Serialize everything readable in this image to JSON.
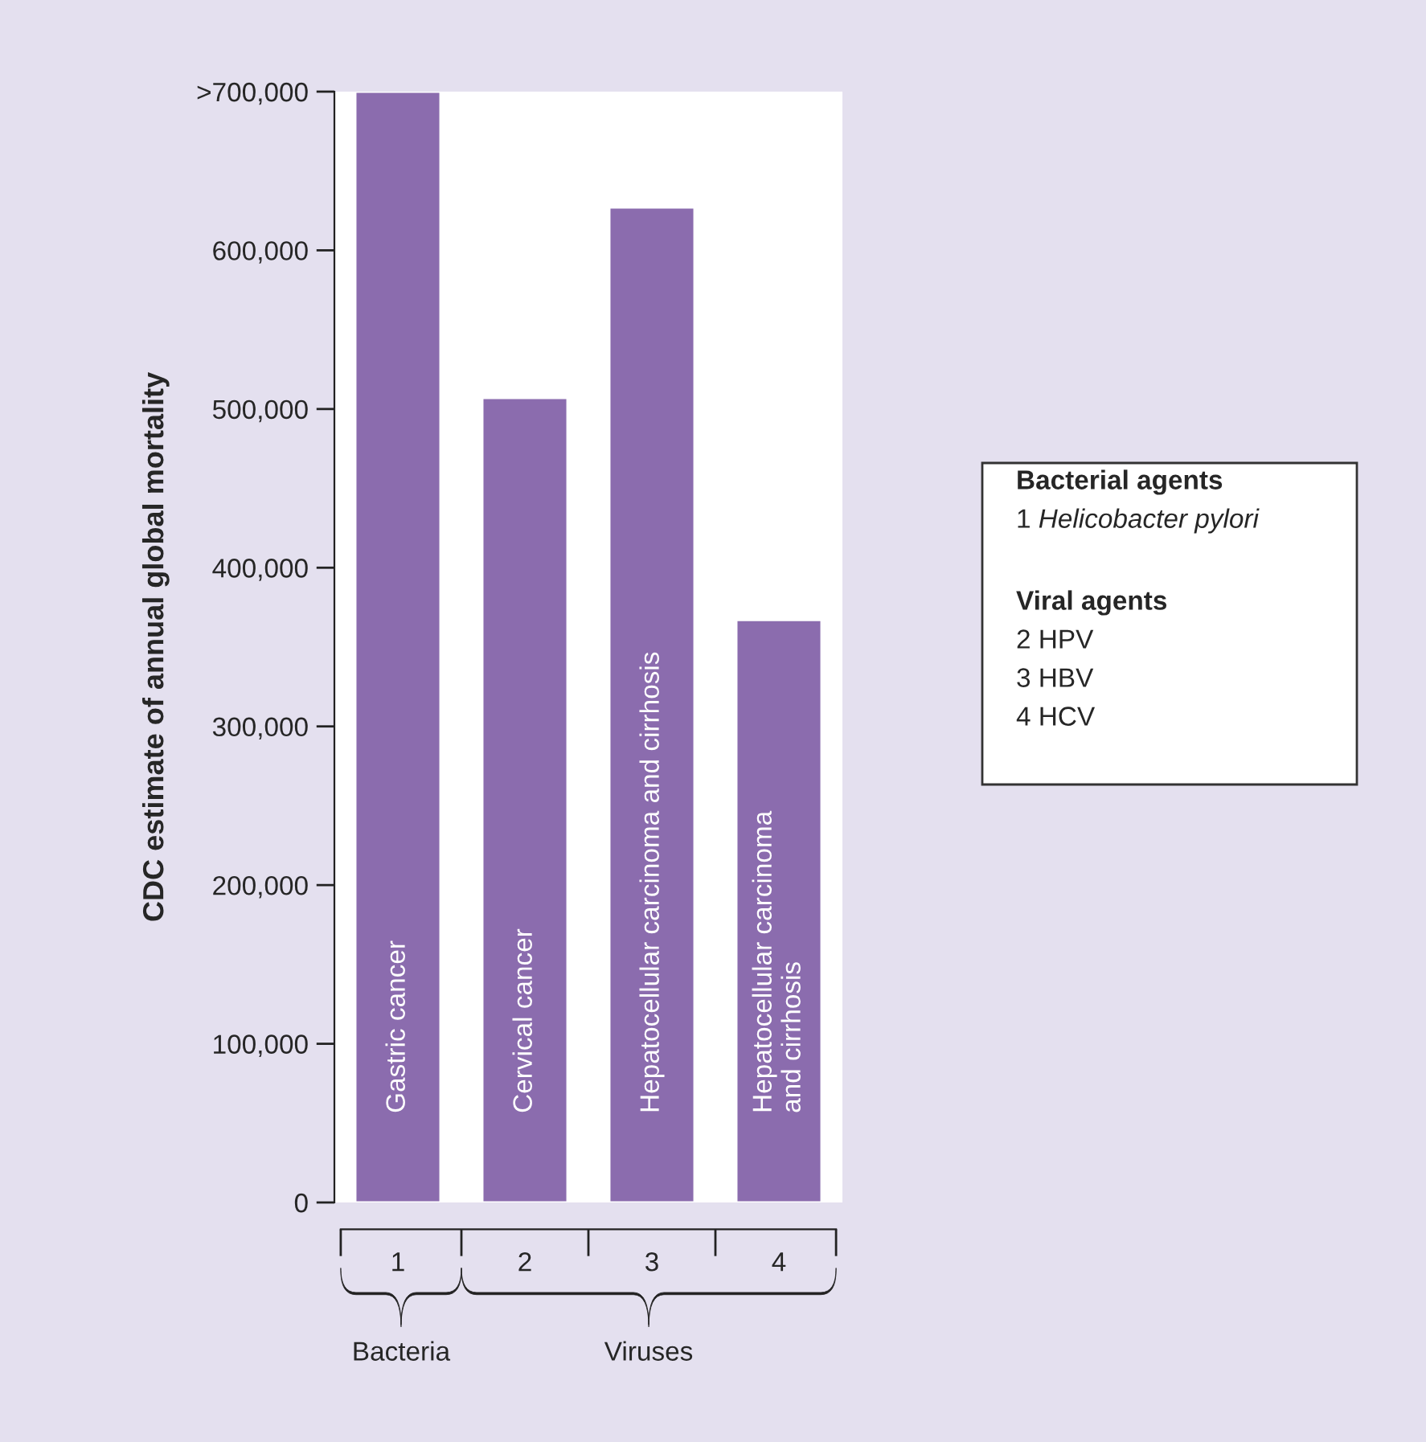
{
  "chart_data": {
    "type": "bar",
    "ylabel": "CDC estimate of annual global mortality",
    "categories": [
      "1",
      "2",
      "3",
      "4"
    ],
    "values": [
      700000,
      507000,
      627000,
      367000
    ],
    "color": "#8b6cae",
    "ylim": [
      0,
      700000
    ],
    "yticks": [
      0,
      {
        "value": 100000,
        "label": "100,000"
      },
      {
        "value": 200000,
        "label": "200,000"
      },
      {
        "value": 300000,
        "label": "300,000"
      },
      {
        "value": 400000,
        "label": "400,000"
      },
      {
        "value": 500000,
        "label": "500,000"
      },
      {
        "value": 600000,
        "label": "600,000"
      },
      {
        "value": 700000,
        "label": ">700,000"
      }
    ],
    "annotations": [
      "Gastric cancer",
      "Cervical cancer",
      "Hepatocellular carcinoma and cirrhosis",
      "Hepatocellular carcinoma\nand cirrhosis",
      "Bacteria",
      "Viruses",
      "Bacterial agents",
      "1 Helicobacter pylori",
      "Viral agents",
      "2 HPV",
      "3 HBV",
      "4 HCV"
    ]
  }
}
